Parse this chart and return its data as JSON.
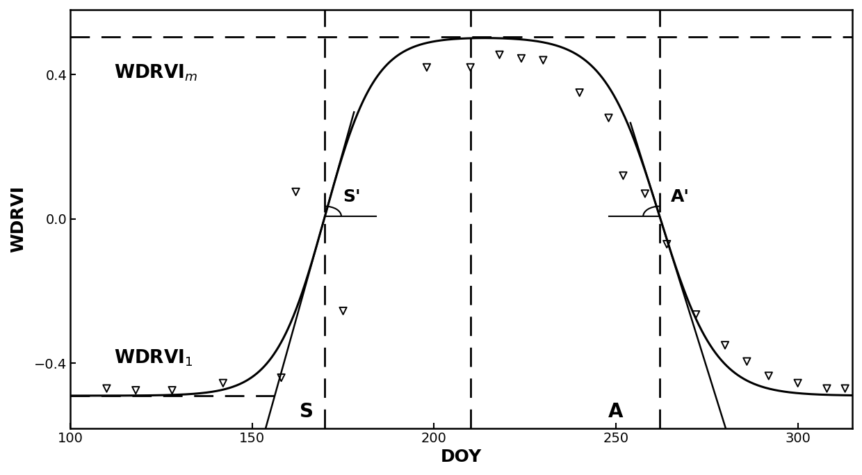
{
  "title": "",
  "xlabel": "DOY",
  "ylabel": "WDRVI",
  "xlim": [
    100,
    315
  ],
  "ylim": [
    -0.58,
    0.58
  ],
  "xticks": [
    100,
    150,
    200,
    250,
    300
  ],
  "yticks": [
    -0.4,
    0.0,
    0.4
  ],
  "background_color": "#ffffff",
  "curve_color": "#000000",
  "wdrvi_m": 0.505,
  "wdrvi_1": -0.49,
  "S_doy": 170,
  "A_doy": 262,
  "peak_doy": 210,
  "s1": 0.145,
  "s2": 0.13,
  "scatter_x": [
    110,
    118,
    128,
    142,
    158,
    162,
    175,
    198,
    210,
    218,
    224,
    230,
    240,
    248,
    252,
    258,
    264,
    272,
    280,
    286,
    292,
    300,
    308,
    313
  ],
  "scatter_y": [
    -0.47,
    -0.475,
    -0.475,
    -0.455,
    -0.44,
    0.075,
    -0.255,
    0.42,
    0.42,
    0.455,
    0.445,
    0.44,
    0.35,
    0.28,
    0.12,
    0.07,
    -0.07,
    -0.265,
    -0.35,
    -0.395,
    -0.435,
    -0.455,
    -0.47,
    -0.47
  ],
  "font_size_label": 15,
  "font_size_annot": 16,
  "font_size_tick": 14
}
